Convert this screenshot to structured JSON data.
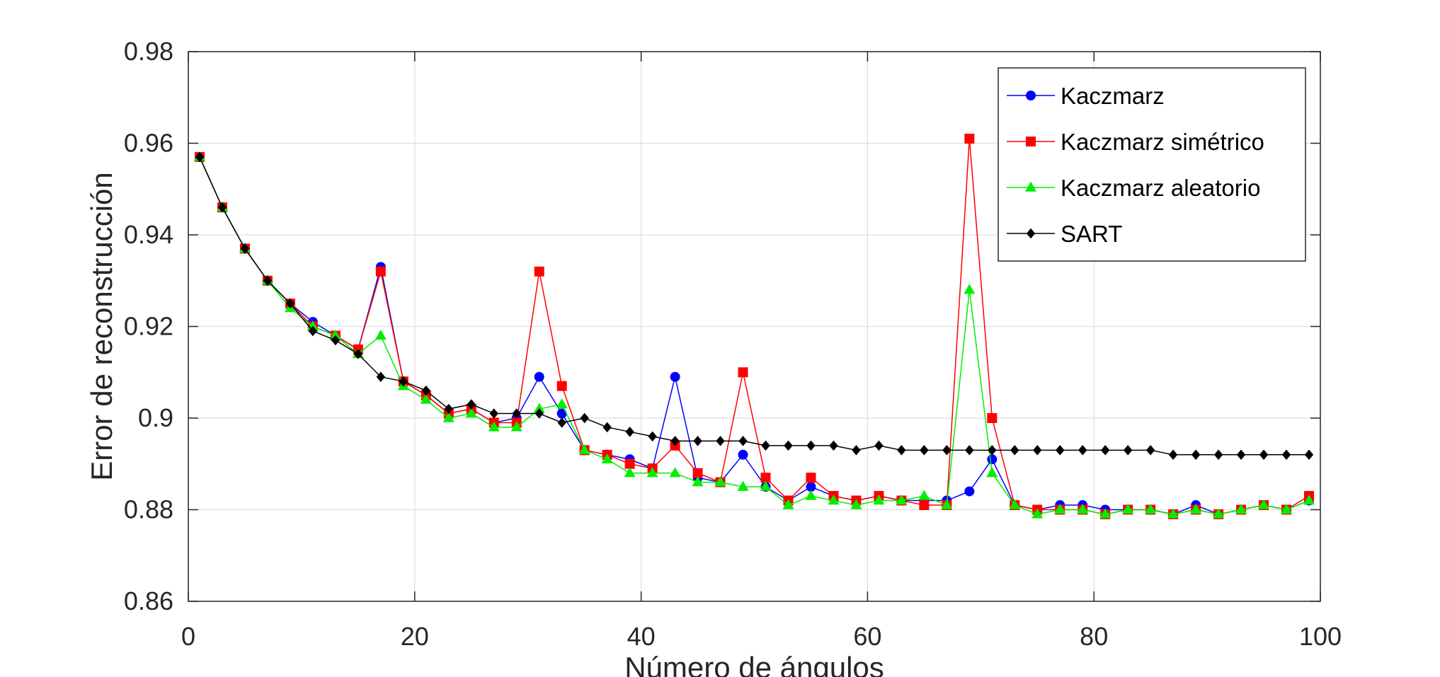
{
  "chart_data": {
    "type": "line",
    "title": "",
    "xlabel": "Número de ángulos",
    "ylabel": "Error de reconstrucción",
    "xlim": [
      0,
      100
    ],
    "ylim": [
      0.86,
      0.98
    ],
    "xticks": [
      0,
      20,
      40,
      60,
      80,
      100
    ],
    "xtick_labels": [
      "0",
      "20",
      "40",
      "60",
      "80",
      "100"
    ],
    "yticks": [
      0.86,
      0.88,
      0.9,
      0.92,
      0.94,
      0.96,
      0.98
    ],
    "ytick_labels": [
      "0.86",
      "0.88",
      "0.9",
      "0.92",
      "0.94",
      "0.96",
      "0.98"
    ],
    "grid": true,
    "legend_position": "top-right",
    "x": [
      1,
      3,
      5,
      7,
      9,
      11,
      13,
      15,
      17,
      19,
      21,
      23,
      25,
      27,
      29,
      31,
      33,
      35,
      37,
      39,
      41,
      43,
      45,
      47,
      49,
      51,
      53,
      55,
      57,
      59,
      61,
      63,
      65,
      67,
      69,
      71,
      73,
      75,
      77,
      79,
      81,
      83,
      85,
      87,
      89,
      91,
      93,
      95,
      97,
      99
    ],
    "series": [
      {
        "name": "Kaczmarz",
        "color": "#0000ff",
        "marker": "circle",
        "values": [
          0.957,
          0.946,
          0.937,
          0.93,
          0.925,
          0.921,
          0.918,
          0.915,
          0.933,
          0.908,
          0.905,
          0.901,
          0.902,
          0.899,
          0.9,
          0.909,
          0.901,
          0.893,
          0.892,
          0.891,
          0.889,
          0.909,
          0.887,
          0.886,
          0.892,
          0.885,
          0.882,
          0.885,
          0.883,
          0.882,
          0.883,
          0.882,
          0.882,
          0.882,
          0.884,
          0.891,
          0.881,
          0.88,
          0.881,
          0.881,
          0.88,
          0.88,
          0.88,
          0.879,
          0.881,
          0.879,
          0.88,
          0.881,
          0.88,
          0.882
        ]
      },
      {
        "name": "Kaczmarz simétrico",
        "color": "#ff0000",
        "marker": "square",
        "values": [
          0.957,
          0.946,
          0.937,
          0.93,
          0.925,
          0.92,
          0.918,
          0.915,
          0.932,
          0.908,
          0.905,
          0.901,
          0.902,
          0.899,
          0.899,
          0.932,
          0.907,
          0.893,
          0.892,
          0.89,
          0.889,
          0.894,
          0.888,
          0.886,
          0.91,
          0.887,
          0.882,
          0.887,
          0.883,
          0.882,
          0.883,
          0.882,
          0.881,
          0.881,
          0.961,
          0.9,
          0.881,
          0.88,
          0.88,
          0.88,
          0.879,
          0.88,
          0.88,
          0.879,
          0.88,
          0.879,
          0.88,
          0.881,
          0.88,
          0.883
        ]
      },
      {
        "name": "Kaczmarz aleatorio",
        "color": "#00ee00",
        "marker": "triangle",
        "values": [
          0.957,
          0.946,
          0.937,
          0.93,
          0.924,
          0.92,
          0.918,
          0.914,
          0.918,
          0.907,
          0.904,
          0.9,
          0.901,
          0.898,
          0.898,
          0.902,
          0.903,
          0.893,
          0.891,
          0.888,
          0.888,
          0.888,
          0.886,
          0.886,
          0.885,
          0.885,
          0.881,
          0.883,
          0.882,
          0.881,
          0.882,
          0.882,
          0.883,
          0.881,
          0.928,
          0.888,
          0.881,
          0.879,
          0.88,
          0.88,
          0.879,
          0.88,
          0.88,
          0.879,
          0.88,
          0.879,
          0.88,
          0.881,
          0.88,
          0.882
        ]
      },
      {
        "name": "SART",
        "color": "#000000",
        "marker": "diamond",
        "values": [
          0.957,
          0.946,
          0.937,
          0.93,
          0.925,
          0.919,
          0.917,
          0.914,
          0.909,
          0.908,
          0.906,
          0.902,
          0.903,
          0.901,
          0.901,
          0.901,
          0.899,
          0.9,
          0.898,
          0.897,
          0.896,
          0.895,
          0.895,
          0.895,
          0.895,
          0.894,
          0.894,
          0.894,
          0.894,
          0.893,
          0.894,
          0.893,
          0.893,
          0.893,
          0.893,
          0.893,
          0.893,
          0.893,
          0.893,
          0.893,
          0.893,
          0.893,
          0.893,
          0.892,
          0.892,
          0.892,
          0.892,
          0.892,
          0.892,
          0.892
        ]
      }
    ]
  }
}
